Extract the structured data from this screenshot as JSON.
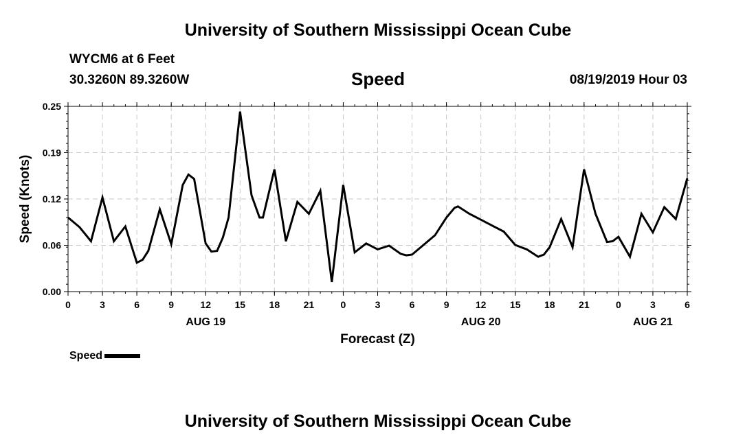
{
  "header": {
    "title": "University of Southern Mississippi Ocean Cube",
    "station": "WYCM6 at 6 Feet",
    "coords": "30.3260N 89.3260W",
    "datetime": "08/19/2019 Hour 03"
  },
  "footer": {
    "title": "University of Southern Mississippi Ocean Cube"
  },
  "legend": {
    "label": "Speed",
    "color": "#000000"
  },
  "chart_data": {
    "type": "line",
    "title": "Speed",
    "xlabel": "Forecast (Z)",
    "ylabel": "Speed (Knots)",
    "xlim": [
      0,
      54
    ],
    "ylim": [
      0,
      0.25
    ],
    "y_ticks": [
      {
        "value": 0,
        "label": "0.00"
      },
      {
        "value": 0.0625,
        "label": "0.06"
      },
      {
        "value": 0.125,
        "label": "0.12"
      },
      {
        "value": 0.1875,
        "label": "0.19"
      },
      {
        "value": 0.25,
        "label": "0.25"
      }
    ],
    "x_ticks": [
      {
        "value": 0,
        "label": "0"
      },
      {
        "value": 3,
        "label": "3"
      },
      {
        "value": 6,
        "label": "6"
      },
      {
        "value": 9,
        "label": "9"
      },
      {
        "value": 12,
        "label": "12"
      },
      {
        "value": 15,
        "label": "15"
      },
      {
        "value": 18,
        "label": "18"
      },
      {
        "value": 21,
        "label": "21"
      },
      {
        "value": 24,
        "label": "0"
      },
      {
        "value": 27,
        "label": "3"
      },
      {
        "value": 30,
        "label": "6"
      },
      {
        "value": 33,
        "label": "9"
      },
      {
        "value": 36,
        "label": "12"
      },
      {
        "value": 39,
        "label": "15"
      },
      {
        "value": 42,
        "label": "18"
      },
      {
        "value": 45,
        "label": "21"
      },
      {
        "value": 48,
        "label": "0"
      },
      {
        "value": 51,
        "label": "3"
      },
      {
        "value": 54,
        "label": "6"
      }
    ],
    "date_labels": [
      {
        "value": 12,
        "label": "AUG 19"
      },
      {
        "value": 36,
        "label": "AUG 20"
      },
      {
        "value": 51,
        "label": "AUG 21"
      }
    ],
    "grid": true,
    "series": [
      {
        "name": "Speed",
        "x": [
          0,
          1,
          2,
          3,
          4,
          5,
          6,
          6.5,
          7,
          8,
          9,
          10,
          10.5,
          11,
          12,
          12.5,
          13,
          13.5,
          14,
          15,
          16,
          16.7,
          17,
          18,
          19,
          20,
          21,
          22,
          23,
          24,
          25,
          26,
          27,
          28,
          29,
          29.5,
          30,
          31,
          32,
          33,
          33.7,
          34,
          35,
          36,
          37,
          38,
          39,
          40,
          41,
          41.5,
          42,
          43,
          44,
          45,
          46,
          47,
          47.5,
          48,
          49,
          50,
          51,
          52,
          53,
          54
        ],
        "y": [
          0.1,
          0.087,
          0.068,
          0.127,
          0.068,
          0.088,
          0.039,
          0.043,
          0.055,
          0.111,
          0.064,
          0.144,
          0.158,
          0.152,
          0.065,
          0.054,
          0.055,
          0.073,
          0.1,
          0.243,
          0.13,
          0.1,
          0.1,
          0.165,
          0.068,
          0.121,
          0.105,
          0.136,
          0.013,
          0.144,
          0.053,
          0.065,
          0.057,
          0.062,
          0.051,
          0.049,
          0.05,
          0.063,
          0.076,
          0.1,
          0.113,
          0.115,
          0.105,
          0.097,
          0.089,
          0.081,
          0.063,
          0.057,
          0.047,
          0.05,
          0.06,
          0.098,
          0.06,
          0.165,
          0.105,
          0.067,
          0.068,
          0.074,
          0.047,
          0.105,
          0.08,
          0.114,
          0.098,
          0.153
        ]
      }
    ]
  }
}
